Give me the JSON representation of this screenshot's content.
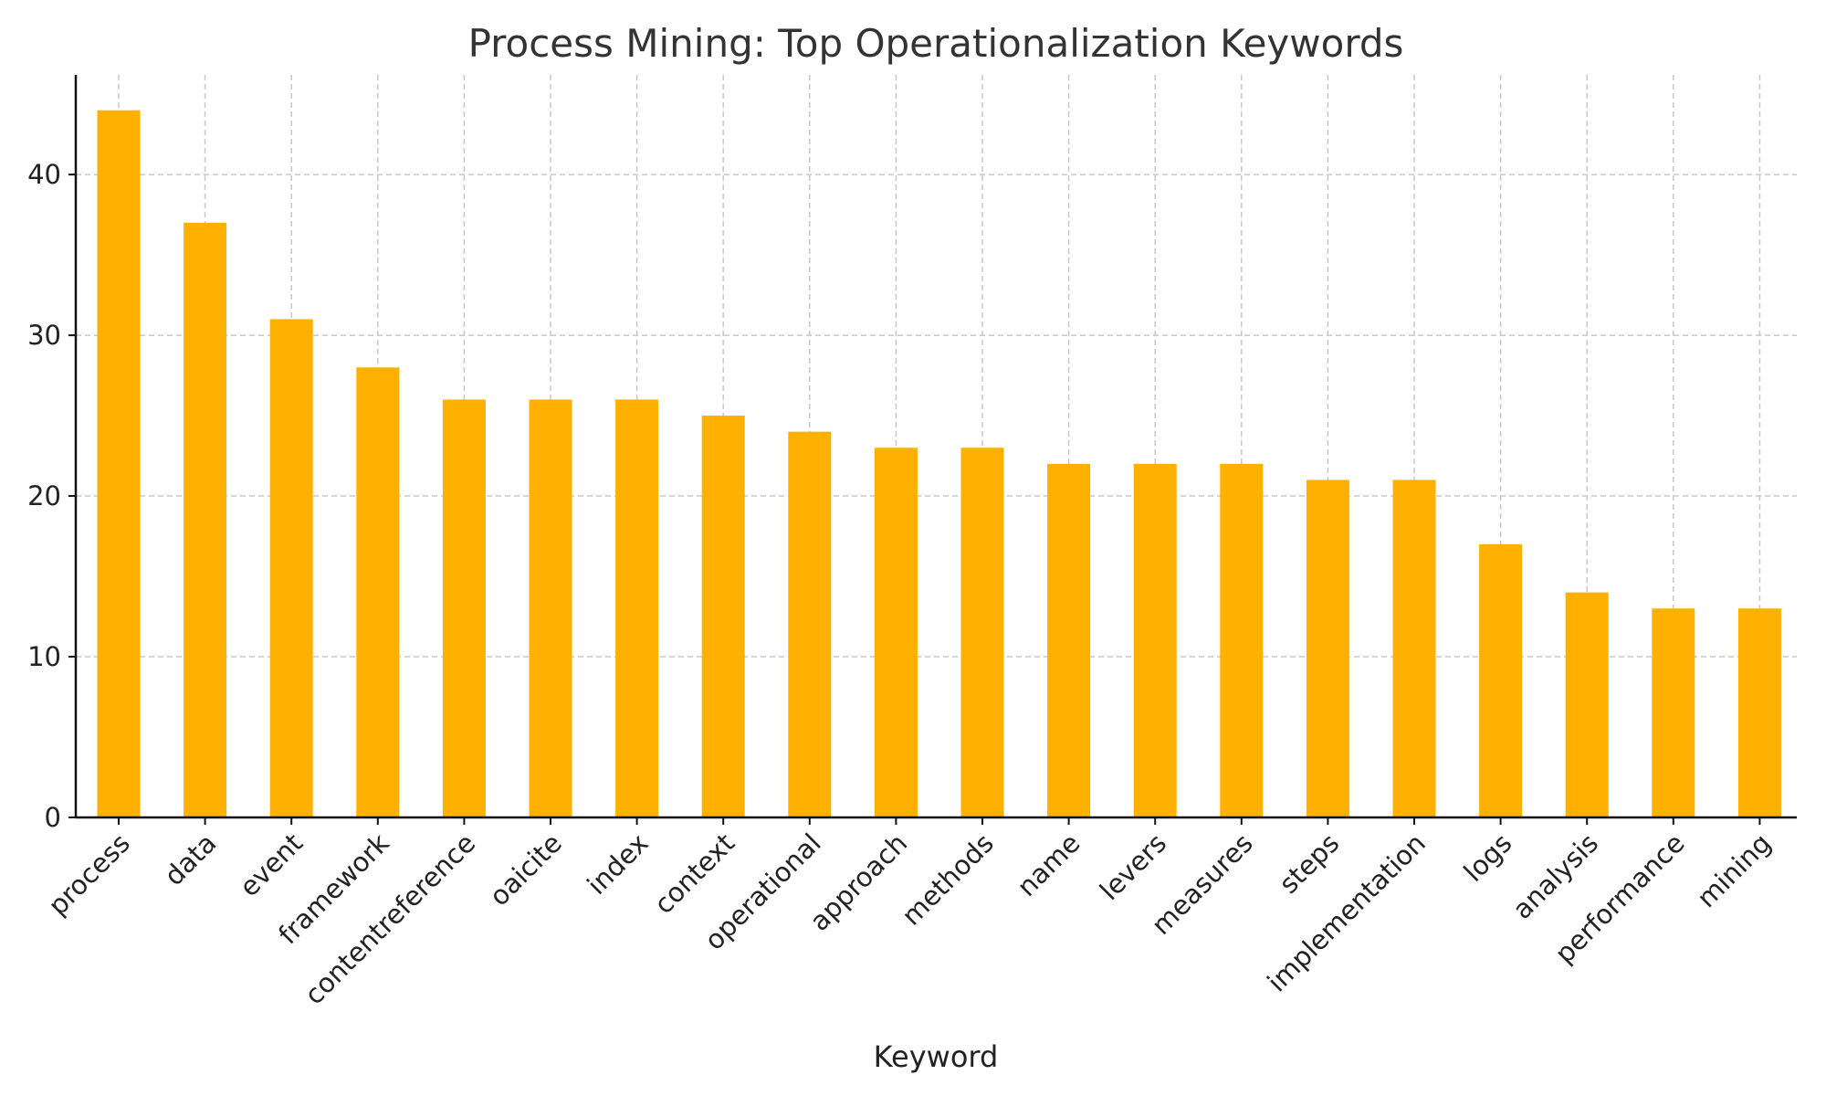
{
  "chart_data": {
    "type": "bar",
    "title": "Process Mining: Top Operationalization Keywords",
    "xlabel": "Keyword",
    "ylabel": "",
    "categories": [
      "process",
      "data",
      "event",
      "framework",
      "contentreference",
      "oaicite",
      "index",
      "context",
      "operational",
      "approach",
      "methods",
      "name",
      "levers",
      "measures",
      "steps",
      "implementation",
      "logs",
      "analysis",
      "performance",
      "mining"
    ],
    "values": [
      44,
      37,
      31,
      28,
      26,
      26,
      26,
      25,
      24,
      23,
      23,
      22,
      22,
      22,
      21,
      21,
      17,
      14,
      13,
      13
    ],
    "ylim": [
      0,
      46.2
    ],
    "yticks": [
      0,
      10,
      20,
      30,
      40
    ],
    "grid": true,
    "legend": "none",
    "bar_color": "#FFB000"
  }
}
